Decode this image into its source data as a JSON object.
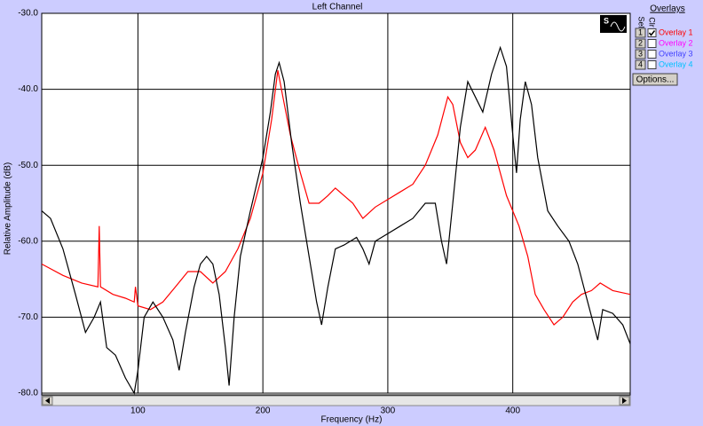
{
  "chart_data": {
    "type": "line",
    "title": "Left Channel",
    "x_label": "Frequency (Hz)",
    "y_label": "Relative Amplitude (dB)",
    "xlim": [
      23,
      494
    ],
    "ylim": [
      -80,
      -30
    ],
    "xticks": [
      100,
      200,
      300,
      400
    ],
    "yticks": [
      {
        "value": -30,
        "label": "-30.0"
      },
      {
        "value": -40,
        "label": "-40.0"
      },
      {
        "value": -50,
        "label": "-50.0"
      },
      {
        "value": -60,
        "label": "-60.0"
      },
      {
        "value": -70,
        "label": "-70.0"
      },
      {
        "value": -80,
        "label": "-80.0"
      }
    ],
    "grid": true,
    "series": [
      {
        "color": "#ff0000",
        "x": [
          23,
          40,
          55,
          68,
          69,
          70,
          80,
          90,
          97,
          98,
          100,
          110,
          120,
          130,
          140,
          150,
          160,
          170,
          180,
          190,
          200,
          207,
          212,
          216,
          222,
          230,
          237,
          245,
          252,
          258,
          265,
          272,
          280,
          290,
          300,
          310,
          320,
          330,
          340,
          348,
          352,
          358,
          364,
          370,
          378,
          385,
          395,
          405,
          412,
          418,
          425,
          433,
          440,
          448,
          455,
          463,
          470,
          480,
          494
        ],
        "values": [
          -63,
          -64.5,
          -65.5,
          -66,
          -58,
          -66,
          -67,
          -67.5,
          -68,
          -66,
          -68.5,
          -69,
          -68,
          -66,
          -64,
          -64,
          -65.5,
          -64,
          -61,
          -57,
          -51,
          -44,
          -37.5,
          -41,
          -46,
          -51,
          -55,
          -55,
          -54,
          -53,
          -54,
          -55,
          -57,
          -55.5,
          -54.5,
          -53.5,
          -52.5,
          -50,
          -46,
          -41,
          -42,
          -47,
          -49,
          -48,
          -45,
          -48,
          -54,
          -58,
          -62,
          -67,
          -69,
          -71,
          -70,
          -68,
          -67,
          -66.5,
          -65.5,
          -66.5,
          -67
        ]
      },
      {
        "color": "#000000",
        "x": [
          23,
          30,
          40,
          50,
          58,
          65,
          70,
          75,
          82,
          90,
          97,
          100,
          105,
          112,
          120,
          128,
          133,
          138,
          145,
          150,
          155,
          160,
          165,
          170,
          173,
          177,
          182,
          190,
          200,
          206,
          210,
          213,
          217,
          223,
          230,
          237,
          243,
          247,
          252,
          258,
          265,
          275,
          280,
          285,
          290,
          300,
          310,
          320,
          330,
          338,
          343,
          347,
          352,
          358,
          364,
          370,
          376,
          383,
          390,
          395,
          400,
          403,
          406,
          410,
          415,
          420,
          428,
          436,
          445,
          452,
          460,
          468,
          472,
          480,
          488,
          494
        ],
        "values": [
          -56,
          -57,
          -61,
          -67,
          -72,
          -70,
          -68,
          -74,
          -75,
          -78,
          -80,
          -77,
          -70,
          -68,
          -70,
          -73,
          -77,
          -72,
          -66,
          -63,
          -62,
          -63,
          -67,
          -74,
          -79,
          -70,
          -62,
          -56,
          -49,
          -43,
          -38,
          -36.5,
          -39,
          -47,
          -55,
          -62,
          -68,
          -71,
          -66,
          -61,
          -60.5,
          -59.5,
          -61,
          -63,
          -60,
          -59,
          -58,
          -57,
          -55,
          -55,
          -60,
          -63,
          -55,
          -45,
          -39,
          -41,
          -43,
          -38,
          -34.5,
          -37,
          -46,
          -51,
          -44,
          -39,
          -42,
          -49,
          -56,
          -58,
          -60,
          -63,
          -68,
          -73,
          -69,
          -69.5,
          -71,
          -73.5
        ]
      }
    ]
  },
  "overlays": {
    "title": "Overlays",
    "sel_header": "Sel",
    "clr_header": "Clr",
    "items": [
      {
        "number": "1",
        "label": "Overlay 1",
        "color": "#ff0000",
        "checked": true
      },
      {
        "number": "2",
        "label": "Overlay 2",
        "color": "#ff00ff",
        "checked": false
      },
      {
        "number": "3",
        "label": "Overlay 3",
        "color": "#4040ff",
        "checked": false
      },
      {
        "number": "4",
        "label": "Overlay 4",
        "color": "#00c0ff",
        "checked": false
      }
    ],
    "options_button": "Options..."
  }
}
